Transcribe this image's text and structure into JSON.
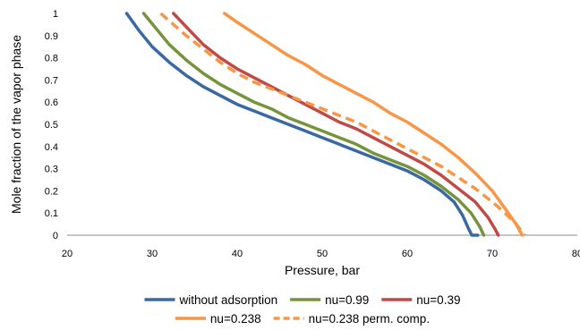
{
  "chart_data": {
    "type": "line",
    "title": "",
    "xlabel": "Pressure, bar",
    "ylabel": "Mole fraction of the vapor phase",
    "xlim": [
      20,
      80
    ],
    "ylim": [
      0,
      1
    ],
    "x_ticks": [
      "20",
      "30",
      "40",
      "50",
      "60",
      "70",
      "80"
    ],
    "y_ticks": [
      "0",
      "0.1",
      "0.2",
      "0.3",
      "0.4",
      "0.5",
      "0.6",
      "0.7",
      "0.8",
      "0.9",
      "1"
    ],
    "grid": false,
    "legend_position": "bottom",
    "series": [
      {
        "name": "without adsorption",
        "color": "#3a68a0",
        "dash": false,
        "points": [
          [
            27.0,
            1.0
          ],
          [
            28.5,
            0.92
          ],
          [
            30.0,
            0.85
          ],
          [
            32.0,
            0.78
          ],
          [
            34.0,
            0.72
          ],
          [
            36.0,
            0.67
          ],
          [
            38.0,
            0.63
          ],
          [
            40.0,
            0.59
          ],
          [
            42.0,
            0.56
          ],
          [
            44.0,
            0.53
          ],
          [
            46.0,
            0.5
          ],
          [
            48.0,
            0.47
          ],
          [
            50.0,
            0.44
          ],
          [
            52.0,
            0.41
          ],
          [
            54.0,
            0.38
          ],
          [
            56.0,
            0.35
          ],
          [
            58.0,
            0.32
          ],
          [
            60.0,
            0.29
          ],
          [
            62.0,
            0.25
          ],
          [
            64.0,
            0.2
          ],
          [
            65.5,
            0.15
          ],
          [
            66.5,
            0.09
          ],
          [
            67.2,
            0.03
          ],
          [
            67.6,
            0.0
          ],
          [
            68.3,
            0.0
          ]
        ]
      },
      {
        "name": "nu=0.99",
        "color": "#77943c",
        "dash": false,
        "points": [
          [
            29.0,
            1.0
          ],
          [
            30.5,
            0.93
          ],
          [
            32.0,
            0.86
          ],
          [
            34.0,
            0.79
          ],
          [
            36.0,
            0.73
          ],
          [
            38.0,
            0.68
          ],
          [
            40.0,
            0.64
          ],
          [
            42.0,
            0.6
          ],
          [
            44.0,
            0.57
          ],
          [
            46.0,
            0.53
          ],
          [
            48.0,
            0.5
          ],
          [
            50.0,
            0.47
          ],
          [
            52.0,
            0.44
          ],
          [
            54.0,
            0.41
          ],
          [
            56.0,
            0.37
          ],
          [
            58.0,
            0.34
          ],
          [
            60.0,
            0.31
          ],
          [
            62.0,
            0.27
          ],
          [
            64.0,
            0.22
          ],
          [
            66.0,
            0.16
          ],
          [
            67.5,
            0.1
          ],
          [
            68.5,
            0.04
          ],
          [
            69.0,
            0.0
          ]
        ]
      },
      {
        "name": "nu=0.39",
        "color": "#be4b48",
        "dash": false,
        "points": [
          [
            32.5,
            1.0
          ],
          [
            34.0,
            0.94
          ],
          [
            36.0,
            0.86
          ],
          [
            38.0,
            0.8
          ],
          [
            40.0,
            0.75
          ],
          [
            42.0,
            0.71
          ],
          [
            44.0,
            0.67
          ],
          [
            46.0,
            0.63
          ],
          [
            48.0,
            0.59
          ],
          [
            50.0,
            0.55
          ],
          [
            52.0,
            0.51
          ],
          [
            54.0,
            0.48
          ],
          [
            56.0,
            0.44
          ],
          [
            58.0,
            0.4
          ],
          [
            60.0,
            0.36
          ],
          [
            62.0,
            0.32
          ],
          [
            64.0,
            0.27
          ],
          [
            66.0,
            0.21
          ],
          [
            68.0,
            0.15
          ],
          [
            69.5,
            0.08
          ],
          [
            70.3,
            0.03
          ],
          [
            70.7,
            0.0
          ]
        ]
      },
      {
        "name": "nu=0.238",
        "color": "#f79646",
        "dash": false,
        "points": [
          [
            38.5,
            1.0
          ],
          [
            40.0,
            0.96
          ],
          [
            42.0,
            0.91
          ],
          [
            44.0,
            0.86
          ],
          [
            46.0,
            0.81
          ],
          [
            48.0,
            0.77
          ],
          [
            50.0,
            0.72
          ],
          [
            52.0,
            0.68
          ],
          [
            54.0,
            0.64
          ],
          [
            56.0,
            0.6
          ],
          [
            58.0,
            0.55
          ],
          [
            60.0,
            0.51
          ],
          [
            62.0,
            0.46
          ],
          [
            64.0,
            0.41
          ],
          [
            66.0,
            0.35
          ],
          [
            68.0,
            0.28
          ],
          [
            70.0,
            0.2
          ],
          [
            71.5,
            0.12
          ],
          [
            72.8,
            0.05
          ],
          [
            73.5,
            0.0
          ]
        ]
      },
      {
        "name": "nu=0.238 perm. comp.",
        "color": "#f79646",
        "dash": true,
        "points": [
          [
            31.0,
            1.0
          ],
          [
            32.5,
            0.95
          ],
          [
            34.0,
            0.9
          ],
          [
            36.0,
            0.84
          ],
          [
            38.0,
            0.78
          ],
          [
            40.0,
            0.73
          ],
          [
            42.0,
            0.69
          ],
          [
            44.0,
            0.66
          ],
          [
            46.0,
            0.63
          ],
          [
            48.0,
            0.6
          ],
          [
            50.0,
            0.57
          ],
          [
            52.0,
            0.54
          ],
          [
            54.0,
            0.51
          ],
          [
            56.0,
            0.47
          ],
          [
            58.0,
            0.43
          ],
          [
            60.0,
            0.39
          ],
          [
            62.0,
            0.35
          ],
          [
            64.0,
            0.31
          ],
          [
            66.0,
            0.26
          ],
          [
            68.0,
            0.21
          ],
          [
            70.0,
            0.15
          ],
          [
            71.5,
            0.1
          ],
          [
            72.8,
            0.05
          ],
          [
            73.8,
            0.0
          ]
        ]
      }
    ]
  }
}
